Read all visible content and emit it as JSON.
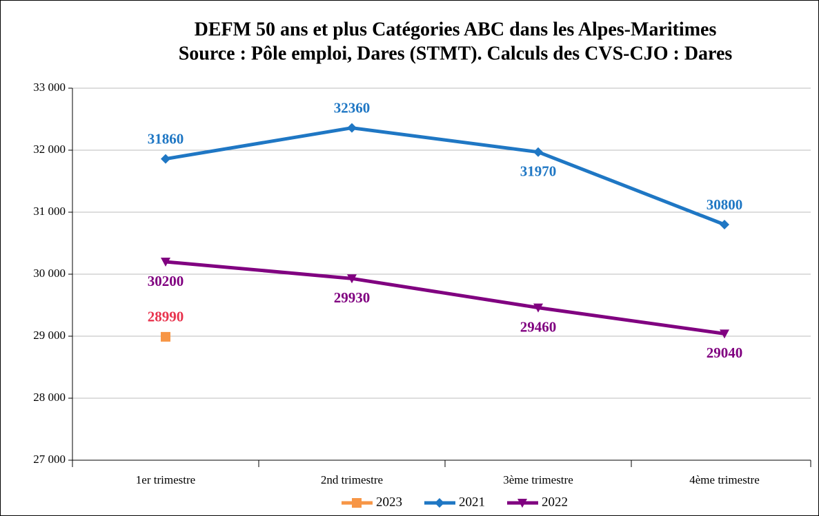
{
  "chart_data": {
    "type": "line",
    "title": "DEFM 50 ans et plus  Catégories ABC dans les Alpes-Maritimes",
    "subtitle": "Source : Pôle emploi, Dares (STMT). Calculs des CVS-CJO : Dares",
    "categories": [
      "1er trimestre",
      "2nd  trimestre",
      "3ème trimestre",
      "4ème trimestre"
    ],
    "series": [
      {
        "name": "2023",
        "color": "#f79646",
        "label_color": "#e8344e",
        "marker": "square",
        "values": [
          28990,
          null,
          null,
          null
        ]
      },
      {
        "name": "2021",
        "color": "#1f77c4",
        "label_color": "#1f77c4",
        "marker": "diamond",
        "values": [
          31860,
          32360,
          31970,
          30800
        ]
      },
      {
        "name": "2022",
        "color": "#800080",
        "label_color": "#800080",
        "marker": "triangle-down",
        "values": [
          30200,
          29930,
          29460,
          29040
        ]
      }
    ],
    "ylim": [
      27000,
      33000
    ],
    "yticks": [
      {
        "value": 27000,
        "label": "27 000"
      },
      {
        "value": 28000,
        "label": "28 000"
      },
      {
        "value": 29000,
        "label": "29 000"
      },
      {
        "value": 30000,
        "label": "30 000"
      },
      {
        "value": 31000,
        "label": "31 000"
      },
      {
        "value": 32000,
        "label": "32 000"
      },
      {
        "value": 33000,
        "label": "33 000"
      }
    ],
    "grid": true,
    "legend": "bottom"
  }
}
